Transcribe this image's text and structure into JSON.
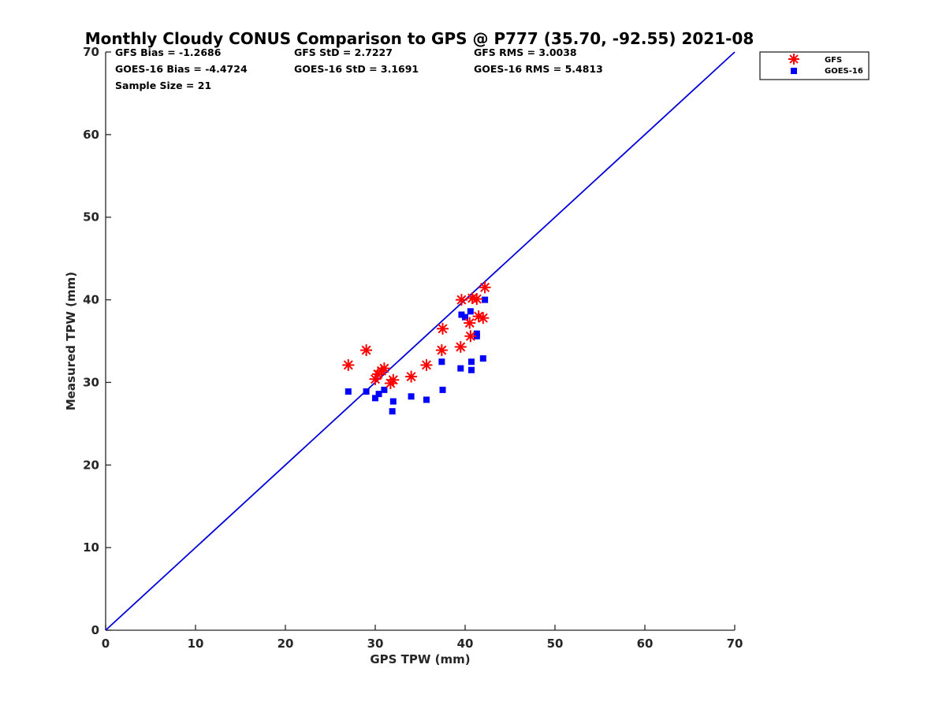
{
  "chart_data": {
    "type": "scatter",
    "title": "Monthly Cloudy CONUS Comparison to GPS @ P777 (35.70, -92.55) 2021-08",
    "xlabel": "GPS TPW (mm)",
    "ylabel": "Measured TPW (mm)",
    "xlim": [
      0,
      70
    ],
    "ylim": [
      0,
      70
    ],
    "xticks": [
      0,
      10,
      20,
      30,
      40,
      50,
      60,
      70
    ],
    "yticks": [
      0,
      10,
      20,
      30,
      40,
      50,
      60,
      70
    ],
    "grid": false,
    "legend_position": "top-right outside",
    "reference_line": {
      "from": [
        0,
        0
      ],
      "to": [
        70,
        70
      ],
      "color": "#0000dd"
    },
    "stats": [
      "GFS Bias = -1.2686",
      "GFS StD = 2.7227",
      "GFS RMS = 3.0038",
      "GOES-16 Bias = -4.4724",
      "GOES-16 StD = 3.1691",
      "GOES-16 RMS = 5.4813",
      "Sample Size = 21"
    ],
    "series": [
      {
        "name": "GFS",
        "marker": "asterisk",
        "color": "#ff0000",
        "points": [
          [
            27.0,
            32.1
          ],
          [
            29.0,
            33.9
          ],
          [
            30.0,
            30.4
          ],
          [
            30.3,
            31.0
          ],
          [
            30.7,
            31.4
          ],
          [
            31.0,
            31.7
          ],
          [
            31.7,
            29.9
          ],
          [
            32.0,
            30.3
          ],
          [
            34.0,
            30.7
          ],
          [
            35.7,
            32.1
          ],
          [
            37.4,
            33.9
          ],
          [
            37.5,
            36.5
          ],
          [
            39.5,
            34.3
          ],
          [
            39.6,
            40.0
          ],
          [
            40.5,
            37.2
          ],
          [
            40.6,
            35.6
          ],
          [
            40.8,
            40.2
          ],
          [
            41.3,
            40.1
          ],
          [
            41.5,
            38.0
          ],
          [
            42.0,
            37.8
          ],
          [
            42.2,
            41.5
          ]
        ]
      },
      {
        "name": "GOES-16",
        "marker": "square",
        "color": "#0000ff",
        "points": [
          [
            27.0,
            28.9
          ],
          [
            29.0,
            28.9
          ],
          [
            30.0,
            28.1
          ],
          [
            30.4,
            28.6
          ],
          [
            31.0,
            29.1
          ],
          [
            31.9,
            26.5
          ],
          [
            32.0,
            27.7
          ],
          [
            34.0,
            28.3
          ],
          [
            35.7,
            27.9
          ],
          [
            37.4,
            32.5
          ],
          [
            37.5,
            29.1
          ],
          [
            39.5,
            31.7
          ],
          [
            39.6,
            38.2
          ],
          [
            40.0,
            37.9
          ],
          [
            40.6,
            38.6
          ],
          [
            40.7,
            32.5
          ],
          [
            40.7,
            31.5
          ],
          [
            41.3,
            35.6
          ],
          [
            41.3,
            35.9
          ],
          [
            42.0,
            32.9
          ],
          [
            42.2,
            40.0
          ]
        ]
      }
    ]
  }
}
